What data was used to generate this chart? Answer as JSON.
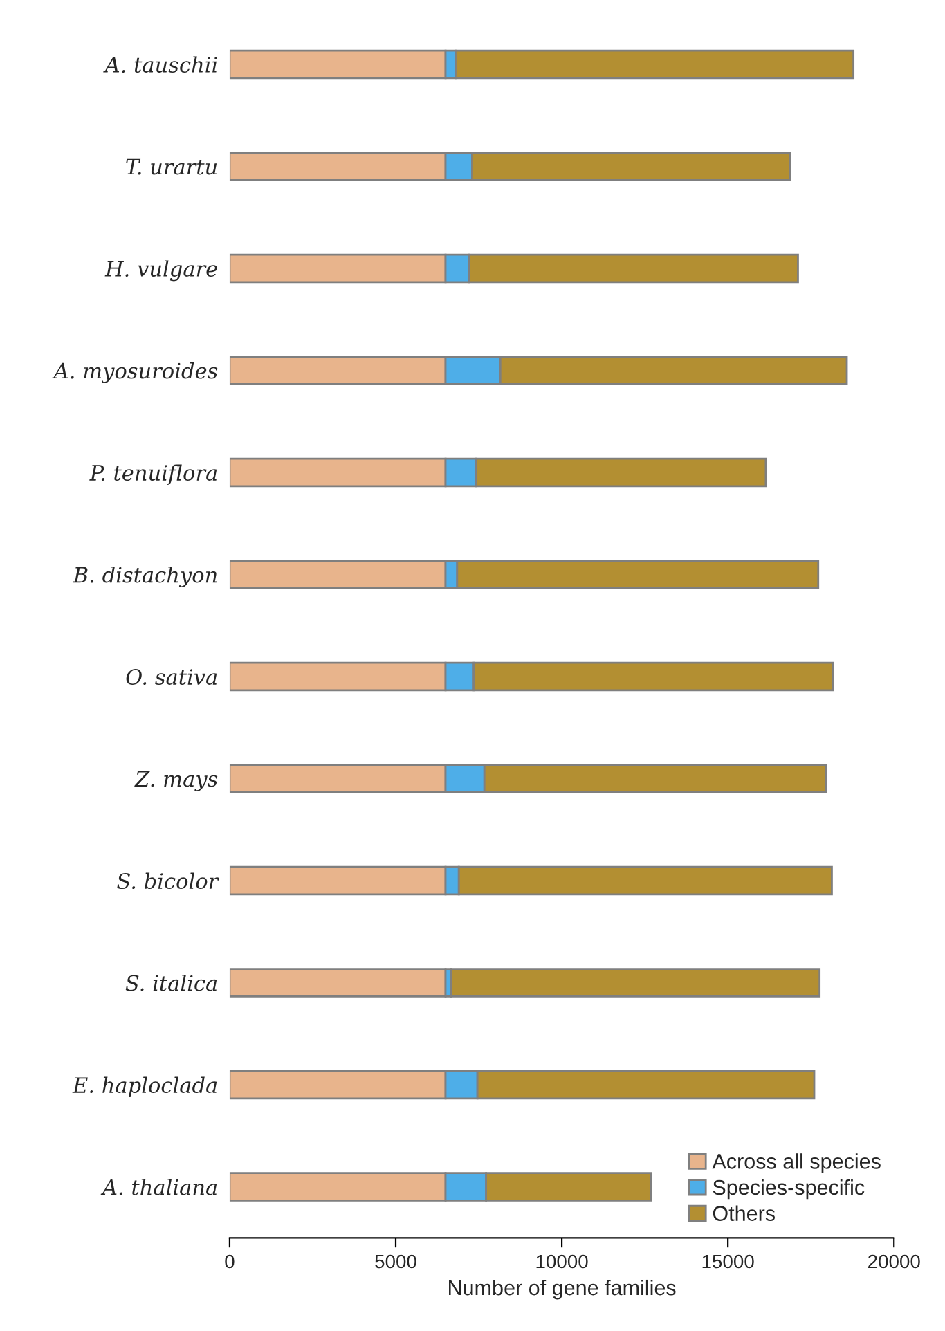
{
  "chart_data": {
    "type": "bar",
    "orientation": "horizontal",
    "stacked": true,
    "xlabel": "Number of gene families",
    "categories": [
      "A. tauschii",
      "T. urartu",
      "H. vulgare",
      "A. myosuroides",
      "P. tenuiflora",
      "B. distachyon",
      "O. sativa",
      "Z. mays",
      "S. bicolor",
      "S. italica",
      "E. haploclada",
      "A. thaliana"
    ],
    "series": [
      {
        "name": "Across all species",
        "color": "#e8b48c",
        "values": [
          6500,
          6500,
          6500,
          6500,
          6500,
          6500,
          6500,
          6500,
          6500,
          6500,
          6500,
          6500
        ]
      },
      {
        "name": "Species-specific",
        "color": "#4eaee8",
        "values": [
          300,
          800,
          700,
          1650,
          920,
          350,
          850,
          1170,
          400,
          170,
          960,
          1220
        ]
      },
      {
        "name": "Others",
        "color": "#b38f32",
        "values": [
          11980,
          9570,
          9910,
          10430,
          8720,
          10870,
          10820,
          10280,
          11230,
          11090,
          10140,
          4960
        ]
      }
    ],
    "xlim": [
      0,
      20000
    ],
    "xticks": [
      0,
      5000,
      10000,
      15000,
      20000
    ],
    "grid": false,
    "legend": "bottom right"
  }
}
